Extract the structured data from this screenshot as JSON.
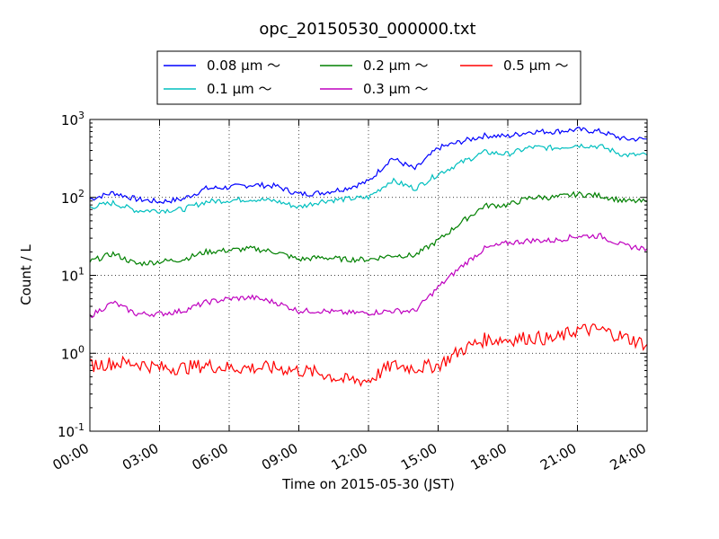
{
  "chart_data": {
    "type": "line",
    "title": "opc_20150530_000000.txt",
    "xlabel": "Time on 2015-05-30 (JST)",
    "ylabel": "Count / L",
    "yscale": "log",
    "ylim": [
      0.1,
      1000
    ],
    "y_ticks": [
      {
        "base": "10",
        "exp": "-1",
        "value": 0.1
      },
      {
        "base": "10",
        "exp": "0",
        "value": 1
      },
      {
        "base": "10",
        "exp": "1",
        "value": 10
      },
      {
        "base": "10",
        "exp": "2",
        "value": 100
      },
      {
        "base": "10",
        "exp": "3",
        "value": 1000
      }
    ],
    "xlim": [
      0,
      24
    ],
    "x_ticks": [
      "00:00",
      "03:00",
      "06:00",
      "09:00",
      "12:00",
      "15:00",
      "18:00",
      "21:00",
      "24:00"
    ],
    "grid": true,
    "legend_position": "top-center, above plot",
    "x_hours": [
      0,
      1,
      2,
      3,
      4,
      5,
      6,
      7,
      8,
      9,
      10,
      11,
      12,
      13,
      14,
      15,
      16,
      17,
      18,
      19,
      20,
      21,
      22,
      23,
      24
    ],
    "series": [
      {
        "name": "0.08 μm ～",
        "color": "#0000ff",
        "values": [
          95,
          115,
          95,
          88,
          95,
          130,
          135,
          145,
          140,
          110,
          115,
          130,
          160,
          320,
          230,
          430,
          520,
          620,
          610,
          700,
          700,
          740,
          700,
          560,
          560
        ]
      },
      {
        "name": "0.1 μm ～",
        "color": "#00bfbf",
        "values": [
          75,
          85,
          68,
          68,
          70,
          88,
          92,
          95,
          90,
          75,
          90,
          95,
          100,
          165,
          130,
          200,
          280,
          380,
          360,
          440,
          430,
          470,
          450,
          350,
          350
        ]
      },
      {
        "name": "0.2 μm ～",
        "color": "#008000",
        "values": [
          15,
          19,
          14,
          15,
          16,
          20,
          21,
          22,
          20,
          16,
          17,
          16,
          16,
          18,
          18,
          28,
          48,
          78,
          80,
          100,
          100,
          110,
          105,
          90,
          88
        ]
      },
      {
        "name": "0.3 μm ～",
        "color": "#bf00bf",
        "values": [
          3,
          4.5,
          3.2,
          3.2,
          3.5,
          4.5,
          5,
          5.2,
          4.5,
          3.5,
          3.5,
          3.3,
          3.3,
          3.5,
          3.5,
          7,
          13,
          22,
          26,
          28,
          28,
          32,
          32,
          24,
          22
        ]
      },
      {
        "name": "0.5 μm ～",
        "color": "#ff0000",
        "values": [
          0.7,
          0.75,
          0.75,
          0.65,
          0.65,
          0.7,
          0.65,
          0.65,
          0.65,
          0.6,
          0.55,
          0.45,
          0.45,
          0.7,
          0.65,
          0.7,
          1.1,
          1.5,
          1.5,
          1.6,
          1.5,
          2.0,
          2.0,
          1.6,
          1.3
        ]
      }
    ]
  }
}
